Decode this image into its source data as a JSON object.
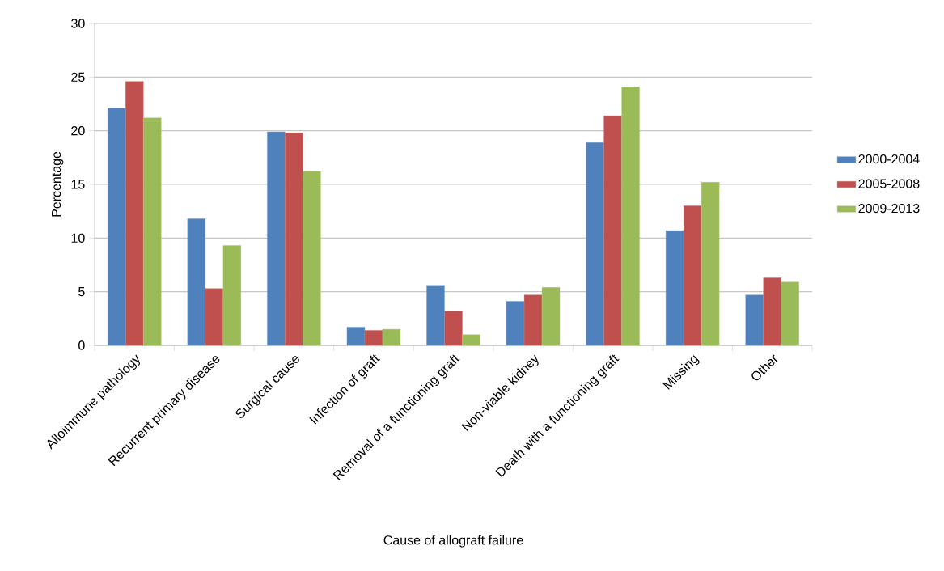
{
  "chart_data": {
    "type": "bar",
    "xlabel": "Cause of allograft failure",
    "ylabel": "Percentage",
    "categories": [
      "Alloimmune pathology",
      "Recurrent primary disease",
      "Surgical cause",
      "Infection of graft",
      "Removal of a functioning graft",
      "Non-viable kidney",
      "Death with a functioning graft",
      "Missing",
      "Other"
    ],
    "series": [
      {
        "name": "2000-2004",
        "color": "#4f81bd",
        "values": [
          22.1,
          11.8,
          19.9,
          1.7,
          5.6,
          4.1,
          18.9,
          10.7,
          4.7
        ]
      },
      {
        "name": "2005-2008",
        "color": "#c0504d",
        "values": [
          24.6,
          5.3,
          19.8,
          1.4,
          3.2,
          4.7,
          21.4,
          13.0,
          6.3
        ]
      },
      {
        "name": "2009-2013",
        "color": "#9bbb59",
        "values": [
          21.2,
          9.3,
          16.2,
          1.5,
          1.0,
          5.4,
          24.1,
          15.2,
          5.9
        ]
      }
    ],
    "ylim": [
      0,
      30
    ],
    "yticks": [
      0,
      5,
      10,
      15,
      20,
      25,
      30
    ],
    "grid": "y",
    "legend": "right"
  }
}
